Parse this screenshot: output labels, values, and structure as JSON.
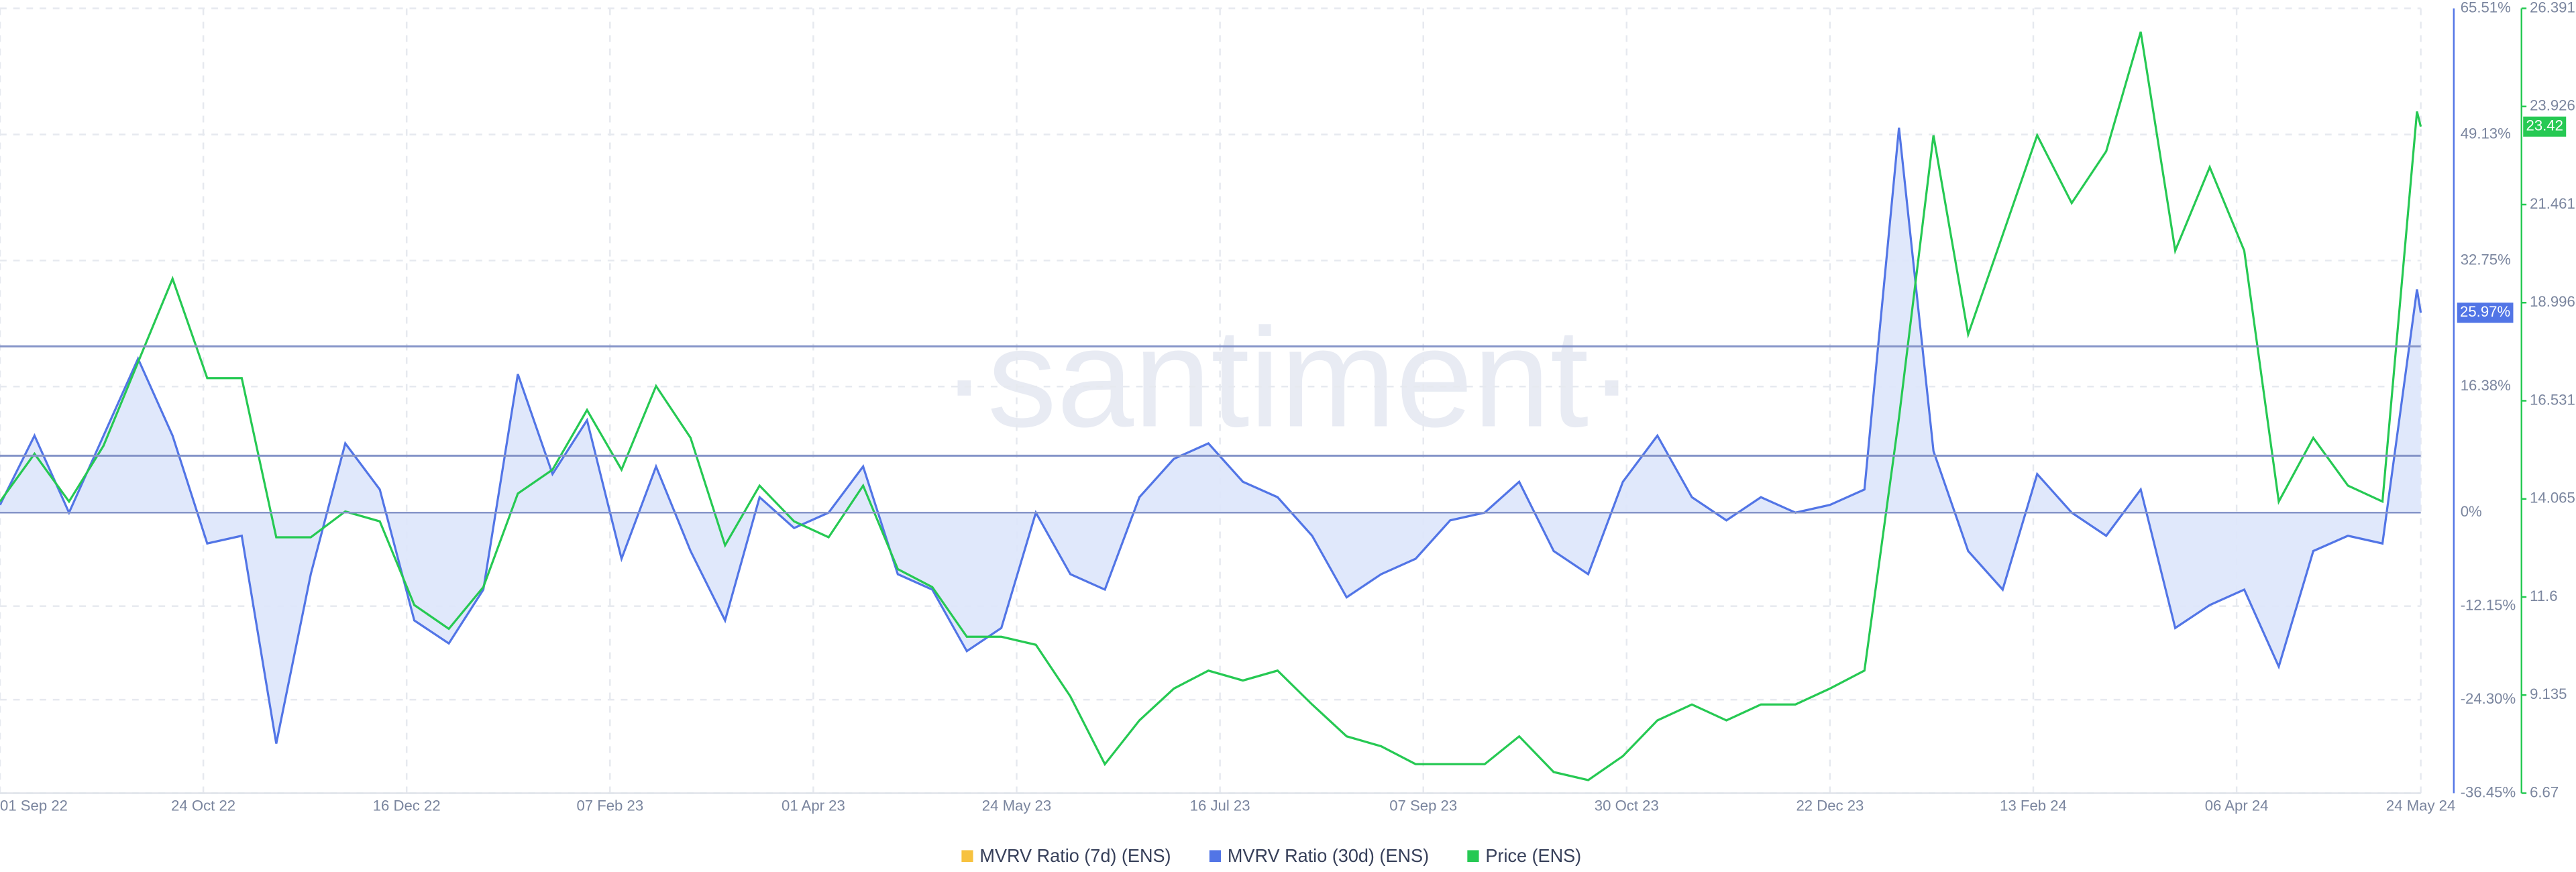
{
  "chart_data": {
    "type": "line",
    "watermark": "·santiment·",
    "x": [
      "01 Sep 22",
      "10 Sep 22",
      "19 Sep 22",
      "28 Sep 22",
      "07 Oct 22",
      "16 Oct 22",
      "25 Oct 22",
      "03 Nov 22",
      "12 Nov 22",
      "21 Nov 22",
      "30 Nov 22",
      "09 Dec 22",
      "18 Dec 22",
      "27 Dec 22",
      "05 Jan 23",
      "14 Jan 23",
      "23 Jan 23",
      "01 Feb 23",
      "10 Feb 23",
      "19 Feb 23",
      "28 Feb 23",
      "09 Mar 23",
      "18 Mar 23",
      "27 Mar 23",
      "05 Apr 23",
      "14 Apr 23",
      "23 Apr 23",
      "02 May 23",
      "11 May 23",
      "20 May 23",
      "29 May 23",
      "07 Jun 23",
      "16 Jun 23",
      "25 Jun 23",
      "04 Jul 23",
      "13 Jul 23",
      "22 Jul 23",
      "31 Jul 23",
      "09 Aug 23",
      "18 Aug 23",
      "27 Aug 23",
      "05 Sep 23",
      "14 Sep 23",
      "23 Sep 23",
      "02 Oct 23",
      "11 Oct 23",
      "20 Oct 23",
      "29 Oct 23",
      "07 Nov 23",
      "16 Nov 23",
      "25 Nov 23",
      "04 Dec 23",
      "13 Dec 23",
      "22 Dec 23",
      "31 Dec 23",
      "09 Jan 24",
      "18 Jan 24",
      "27 Jan 24",
      "05 Feb 24",
      "14 Feb 24",
      "23 Feb 24",
      "03 Mar 24",
      "12 Mar 24",
      "21 Mar 24",
      "30 Mar 24",
      "08 Apr 24",
      "17 Apr 24",
      "26 Apr 24",
      "05 May 24",
      "14 May 24",
      "23 May 24",
      "24 May 24"
    ],
    "xlim": [
      "01 Sep 22",
      "24 May 24"
    ],
    "xticks": [
      "01 Sep 22",
      "24 Oct 22",
      "16 Dec 22",
      "07 Feb 23",
      "01 Apr 23",
      "24 May 23",
      "16 Jul 23",
      "07 Sep 23",
      "30 Oct 23",
      "22 Dec 23",
      "13 Feb 24",
      "06 Apr 24",
      "24 May 24"
    ],
    "ylim": [
      -36.45,
      65.51
    ],
    "yticks": [
      {
        "value": -36.45,
        "label": "-36.45%"
      },
      {
        "value": -24.3,
        "label": "-24.30%"
      },
      {
        "value": -12.15,
        "label": "-12.15%"
      },
      {
        "value": 0,
        "label": "0%"
      },
      {
        "value": 16.38,
        "label": "16.38%"
      },
      {
        "value": 32.75,
        "label": "32.75%"
      },
      {
        "value": 49.13,
        "label": "49.13%"
      },
      {
        "value": 65.51,
        "label": "65.51%"
      }
    ],
    "y2lim": [
      6.67,
      26.391
    ],
    "y2ticks": [
      6.67,
      9.135,
      11.6,
      14.065,
      16.531,
      18.996,
      21.461,
      23.926,
      26.391
    ],
    "hlines": [
      21.6,
      7.4
    ],
    "grid": true,
    "series": [
      {
        "name": "MVRV Ratio (7d) (ENS)",
        "color": "#f7c23f"
      },
      {
        "name": "MVRV Ratio (30d) (ENS)",
        "color": "#5275e6",
        "fill": "#dde5fb",
        "current": 25.97,
        "current_label": "25.97%",
        "values": [
          1,
          10,
          0,
          10,
          20,
          10,
          -4,
          -3,
          -30,
          -8,
          9,
          3,
          -14,
          -17,
          -10,
          18,
          5,
          12,
          -6,
          6,
          -5,
          -14,
          2,
          -2,
          0,
          6,
          -8,
          -10,
          -18,
          -15,
          0,
          -8,
          -10,
          2,
          7,
          9,
          4,
          2,
          -3,
          -11,
          -8,
          -6,
          -1,
          0,
          4,
          -5,
          -8,
          4,
          10,
          2,
          -1,
          2,
          0,
          1,
          3,
          50,
          8,
          -5,
          -10,
          5,
          0,
          -3,
          3,
          -15,
          -12,
          -10,
          -20,
          -5,
          -3,
          -4,
          29,
          25.97
        ]
      },
      {
        "name": "Price (ENS)",
        "color": "#26c953",
        "axis": "y2",
        "current": 23.42,
        "current_label": "23.42",
        "values": [
          14.0,
          15.2,
          14.0,
          15.4,
          17.5,
          19.6,
          17.1,
          17.1,
          13.1,
          13.1,
          13.75,
          13.5,
          11.4,
          10.8,
          11.85,
          14.2,
          14.8,
          16.3,
          14.8,
          16.9,
          15.6,
          12.9,
          14.4,
          13.5,
          13.1,
          14.4,
          12.3,
          11.85,
          10.6,
          10.6,
          10.4,
          9.1,
          7.4,
          8.5,
          9.3,
          9.75,
          9.5,
          9.75,
          8.9,
          8.1,
          7.85,
          7.4,
          7.4,
          7.4,
          8.1,
          7.2,
          7.0,
          7.6,
          8.5,
          8.9,
          8.5,
          8.9,
          8.9,
          9.3,
          9.75,
          16.1,
          23.2,
          18.2,
          20.7,
          23.2,
          21.5,
          22.8,
          25.8,
          20.3,
          22.4,
          20.3,
          14.0,
          15.6,
          14.4,
          14.0,
          23.8,
          23.42
        ]
      }
    ]
  }
}
